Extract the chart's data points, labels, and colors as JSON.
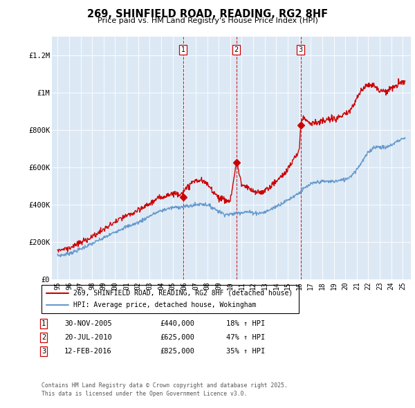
{
  "title": "269, SHINFIELD ROAD, READING, RG2 8HF",
  "subtitle": "Price paid vs. HM Land Registry's House Price Index (HPI)",
  "background_color": "#ffffff",
  "plot_bg_color": "#dce9f5",
  "ylim": [
    0,
    1300000
  ],
  "yticks": [
    0,
    200000,
    400000,
    600000,
    800000,
    1000000,
    1200000
  ],
  "ytick_labels": [
    "£0",
    "£200K",
    "£400K",
    "£600K",
    "£800K",
    "£1M",
    "£1.2M"
  ],
  "xlim_start": 1994.5,
  "xlim_end": 2025.7,
  "line_color_red": "#cc0000",
  "line_color_blue": "#6699cc",
  "transactions": [
    {
      "num": 1,
      "date": "30-NOV-2005",
      "price": 440000,
      "pct": "18%",
      "year": 2005.917
    },
    {
      "num": 2,
      "date": "20-JUL-2010",
      "price": 625000,
      "pct": "47%",
      "year": 2010.542
    },
    {
      "num": 3,
      "date": "12-FEB-2016",
      "price": 825000,
      "pct": "35%",
      "year": 2016.117
    }
  ],
  "legend_line1": "269, SHINFIELD ROAD, READING, RG2 8HF (detached house)",
  "legend_line2": "HPI: Average price, detached house, Wokingham",
  "footer1": "Contains HM Land Registry data © Crown copyright and database right 2025.",
  "footer2": "This data is licensed under the Open Government Licence v3.0.",
  "hpi_blue_data": {
    "t": [
      1995.0,
      1995.5,
      1996.0,
      1996.5,
      1997.0,
      1997.5,
      1998.0,
      1998.5,
      1999.0,
      1999.5,
      2000.0,
      2000.5,
      2001.0,
      2001.5,
      2002.0,
      2002.5,
      2003.0,
      2003.5,
      2004.0,
      2004.5,
      2005.0,
      2005.5,
      2006.0,
      2006.5,
      2007.0,
      2007.5,
      2008.0,
      2008.5,
      2009.0,
      2009.5,
      2010.0,
      2010.5,
      2011.0,
      2011.5,
      2012.0,
      2012.5,
      2013.0,
      2013.5,
      2014.0,
      2014.5,
      2015.0,
      2015.5,
      2016.0,
      2016.5,
      2017.0,
      2017.5,
      2018.0,
      2018.5,
      2019.0,
      2019.5,
      2020.0,
      2020.5,
      2021.0,
      2021.5,
      2022.0,
      2022.5,
      2023.0,
      2023.5,
      2024.0,
      2024.5,
      2025.0
    ],
    "v": [
      128000,
      132000,
      140000,
      150000,
      163000,
      178000,
      192000,
      207000,
      222000,
      238000,
      255000,
      270000,
      283000,
      293000,
      305000,
      322000,
      340000,
      355000,
      368000,
      378000,
      385000,
      388000,
      390000,
      393000,
      400000,
      405000,
      400000,
      385000,
      365000,
      350000,
      348000,
      355000,
      360000,
      362000,
      358000,
      355000,
      360000,
      375000,
      392000,
      408000,
      425000,
      445000,
      465000,
      490000,
      510000,
      520000,
      525000,
      525000,
      525000,
      530000,
      535000,
      555000,
      590000,
      635000,
      680000,
      710000,
      710000,
      705000,
      720000,
      740000,
      755000
    ]
  },
  "hpi_red_data": {
    "t": [
      1995.0,
      1995.5,
      1996.0,
      1996.5,
      1997.0,
      1997.5,
      1998.0,
      1998.5,
      1999.0,
      1999.5,
      2000.0,
      2000.5,
      2001.0,
      2001.5,
      2002.0,
      2002.5,
      2003.0,
      2003.5,
      2004.0,
      2004.5,
      2005.0,
      2005.5,
      2006.0,
      2006.5,
      2007.0,
      2007.5,
      2008.0,
      2008.5,
      2009.0,
      2009.5,
      2010.0,
      2010.542,
      2010.6,
      2011.0,
      2011.5,
      2012.0,
      2012.5,
      2013.0,
      2013.5,
      2014.0,
      2014.5,
      2015.0,
      2015.5,
      2016.0,
      2016.117,
      2016.3,
      2016.5,
      2017.0,
      2017.5,
      2018.0,
      2018.5,
      2019.0,
      2019.5,
      2020.0,
      2020.5,
      2021.0,
      2021.5,
      2022.0,
      2022.5,
      2023.0,
      2023.5,
      2024.0,
      2024.5,
      2025.0
    ],
    "v": [
      158000,
      162000,
      170000,
      182000,
      197000,
      213000,
      229000,
      248000,
      267000,
      288000,
      308000,
      325000,
      340000,
      353000,
      367000,
      387000,
      407000,
      425000,
      440000,
      453000,
      460000,
      460000,
      470000,
      510000,
      530000,
      530000,
      510000,
      475000,
      440000,
      425000,
      420000,
      625000,
      625000,
      505000,
      490000,
      470000,
      465000,
      475000,
      500000,
      525000,
      555000,
      590000,
      640000,
      690000,
      825000,
      870000,
      860000,
      840000,
      840000,
      845000,
      855000,
      860000,
      870000,
      880000,
      910000,
      970000,
      1020000,
      1050000,
      1040000,
      1010000,
      1010000,
      1020000,
      1040000,
      1060000
    ]
  }
}
